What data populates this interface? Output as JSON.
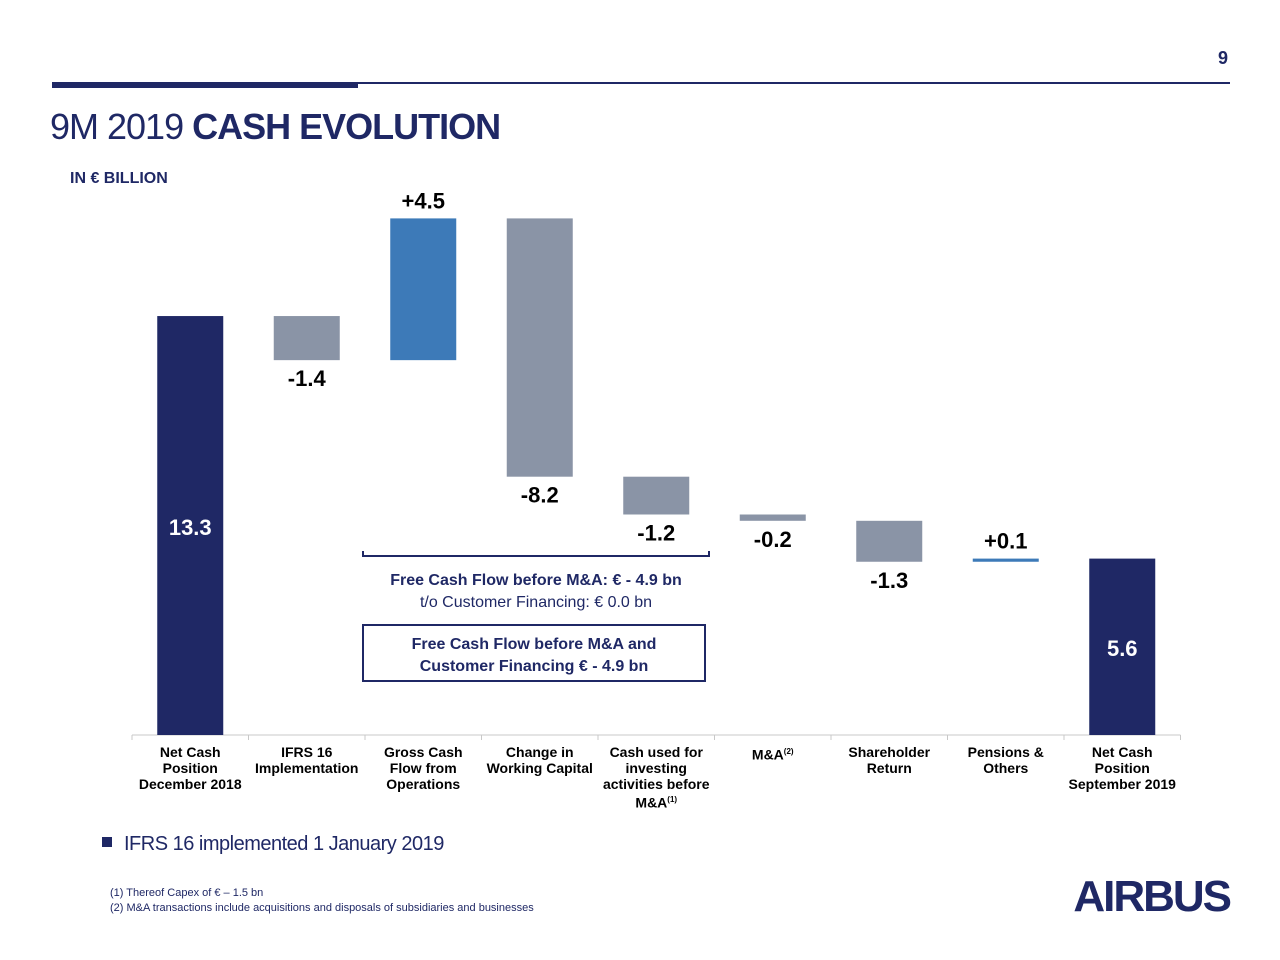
{
  "page_number": "9",
  "title": {
    "light": "9M 2019",
    "bold": "CASH EVOLUTION"
  },
  "colors": {
    "navy": "#1f2865",
    "grey": "#8a94a6",
    "blue": "#3d7ab8"
  },
  "chart_data": {
    "type": "waterfall",
    "unit_label": "IN € BILLION",
    "categories": [
      "Net Cash Position December 2018",
      "IFRS 16 Implementation",
      "Gross Cash Flow from Operations",
      "Change in Working Capital",
      "Cash used for investing activities before M&A(1)",
      "M&A(2)",
      "Shareholder Return",
      "Pensions & Others",
      "Net Cash Position September 2019"
    ],
    "category_lines": [
      [
        "Net Cash",
        "Position",
        "December 2018"
      ],
      [
        "IFRS 16",
        "Implementation"
      ],
      [
        "Gross Cash",
        "Flow from",
        "Operations"
      ],
      [
        "Change in",
        "Working Capital"
      ],
      [
        "Cash used for",
        "investing",
        "activities before",
        "M&A"
      ],
      [
        "M&A"
      ],
      [
        "Shareholder",
        "Return"
      ],
      [
        "Pensions &",
        "Others"
      ],
      [
        "Net Cash",
        "Position",
        "September 2019"
      ]
    ],
    "category_footnote_refs": [
      "",
      "",
      "",
      "",
      "(1)",
      "(2)",
      "",
      "",
      ""
    ],
    "values": [
      13.3,
      -1.4,
      4.5,
      -8.2,
      -1.2,
      -0.2,
      -1.3,
      0.1,
      5.6
    ],
    "kinds": [
      "total",
      "delta",
      "delta",
      "delta",
      "delta",
      "delta",
      "delta",
      "delta",
      "total"
    ],
    "labels": [
      "13.3",
      "-1.4",
      "+4.5",
      "-8.2",
      "-1.2",
      "-0.2",
      "-1.3",
      "+0.1",
      "5.6"
    ],
    "bar_colors": [
      "#1f2865",
      "#8a94a6",
      "#3d7ab8",
      "#8a94a6",
      "#8a94a6",
      "#8a94a6",
      "#8a94a6",
      "#3d7ab8",
      "#1f2865"
    ]
  },
  "annotations": {
    "fcf_line1": "Free Cash Flow before M&A: € - 4.9 bn",
    "fcf_line2": "t/o Customer Financing: € 0.0 bn",
    "fcf_box_line1": "Free Cash Flow before M&A and",
    "fcf_box_line2": "Customer Financing € - 4.9 bn"
  },
  "bullet": "IFRS 16 implemented 1 January 2019",
  "footnotes": [
    "(1) Thereof Capex of € – 1.5 bn",
    "(2) M&A transactions include acquisitions and disposals of subsidiaries and businesses"
  ],
  "logo": "AIRBUS"
}
